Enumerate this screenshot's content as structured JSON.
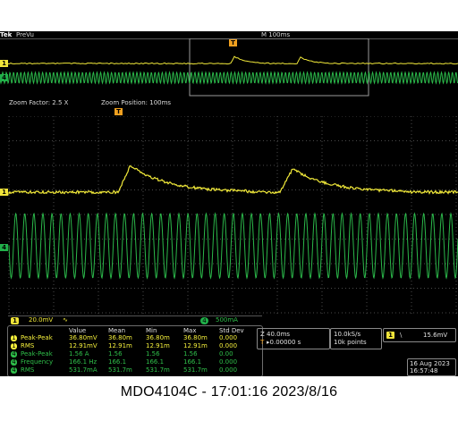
{
  "header": {
    "brand": "Tek",
    "mode": "PreVu",
    "timebase": "M 100ms"
  },
  "zoom": {
    "factor": "Zoom Factor: 2.5 X",
    "position": "Zoom Position: 100ms"
  },
  "markers": {
    "trigger": "T",
    "ch1": "1",
    "ch4": "4"
  },
  "channels": {
    "ch1": {
      "num": "1",
      "scale": "20.0mV",
      "coupling": "∿",
      "color": "#f5f03c"
    },
    "ch4": {
      "num": "4",
      "scale": "500mA",
      "color": "#2fbf4a"
    }
  },
  "measurements": {
    "headers": [
      "Value",
      "Mean",
      "Min",
      "Max",
      "Std Dev"
    ],
    "rows": [
      {
        "ch": "1",
        "name": "Peak-Peak",
        "value": "36.80mV",
        "mean": "36.80m",
        "min": "36.80m",
        "max": "36.80m",
        "std": "0.000",
        "color": "#f5f03c"
      },
      {
        "ch": "1",
        "name": "RMS",
        "value": "12.91mV",
        "mean": "12.91m",
        "min": "12.91m",
        "max": "12.91m",
        "std": "0.000",
        "color": "#f5f03c"
      },
      {
        "ch": "4",
        "name": "Peak-Peak",
        "value": "1.56 A",
        "mean": "1.56",
        "min": "1.56",
        "max": "1.56",
        "std": "0.00",
        "color": "#2fbf4a"
      },
      {
        "ch": "4",
        "name": "Frequency",
        "value": "166.1 Hz",
        "mean": "166.1",
        "min": "166.1",
        "max": "166.1",
        "std": "0.000",
        "color": "#2fbf4a"
      },
      {
        "ch": "4",
        "name": "RMS",
        "value": "531.7mA",
        "mean": "531.7m",
        "min": "531.7m",
        "max": "531.7m",
        "std": "0.000",
        "color": "#2fbf4a"
      }
    ]
  },
  "horizontal": {
    "scale": "Z 40.0ms",
    "delay": "▸0.00000 s",
    "delay_prefix": "T"
  },
  "acquisition": {
    "rate": "10.0kS/s",
    "points": "10k points"
  },
  "trigger": {
    "source": "1",
    "slope": "\\",
    "level": "15.6mV"
  },
  "datetime": {
    "date": "16 Aug 2023",
    "time": "16:57:48"
  },
  "caption": "MDO4104C - 17:01:16   2023/8/16"
}
